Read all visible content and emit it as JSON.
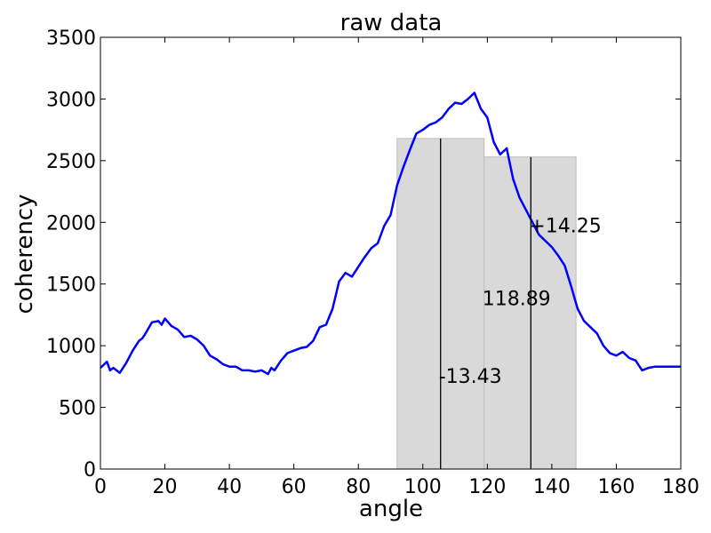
{
  "chart_data": {
    "type": "line",
    "title": "raw data",
    "xlabel": "angle",
    "ylabel": "coherency",
    "xlim": [
      0,
      180
    ],
    "ylim": [
      0,
      3500
    ],
    "xticks": [
      0,
      20,
      40,
      60,
      80,
      100,
      120,
      140,
      160,
      180
    ],
    "yticks": [
      0,
      500,
      1000,
      1500,
      2000,
      2500,
      3000,
      3500
    ],
    "grid": false,
    "line_color": "#0000ff",
    "series": [
      {
        "x": [
          0,
          2,
          3,
          4,
          6,
          8,
          10,
          12,
          13,
          14,
          16,
          18,
          19,
          20,
          22,
          24,
          26,
          28,
          30,
          32,
          34,
          36,
          38,
          40,
          42,
          44,
          46,
          48,
          50,
          52,
          53,
          54,
          56,
          58,
          60,
          62,
          64,
          66,
          68,
          70,
          72,
          74,
          76,
          78,
          80,
          82,
          84,
          86,
          88,
          90,
          92,
          94,
          96,
          98,
          100,
          102,
          104,
          106,
          108,
          110,
          112,
          114,
          116,
          118,
          120,
          122,
          124,
          126,
          128,
          130,
          132,
          134,
          136,
          138,
          140,
          142,
          144,
          146,
          148,
          150,
          152,
          154,
          156,
          158,
          160,
          162,
          164,
          166,
          168,
          170,
          172,
          174,
          176,
          178,
          180
        ],
        "y": [
          820,
          870,
          800,
          820,
          780,
          860,
          960,
          1040,
          1060,
          1100,
          1190,
          1200,
          1170,
          1220,
          1160,
          1130,
          1070,
          1080,
          1050,
          1000,
          920,
          890,
          850,
          830,
          830,
          800,
          800,
          790,
          800,
          770,
          820,
          800,
          880,
          940,
          960,
          980,
          990,
          1040,
          1150,
          1170,
          1300,
          1520,
          1590,
          1560,
          1640,
          1720,
          1790,
          1830,
          1970,
          2060,
          2300,
          2450,
          2590,
          2720,
          2750,
          2790,
          2810,
          2850,
          2920,
          2970,
          2960,
          3000,
          3050,
          2920,
          2850,
          2650,
          2550,
          2600,
          2350,
          2200,
          2100,
          2000,
          1900,
          1850,
          1800,
          1730,
          1650,
          1480,
          1300,
          1200,
          1150,
          1100,
          1000,
          940,
          920,
          950,
          900,
          880,
          800,
          820,
          830,
          830,
          830,
          830,
          830
        ]
      }
    ],
    "bands": [
      {
        "x_start": 92,
        "x_end": 119,
        "top": 2680,
        "marker_x": 105.5,
        "label": "-13.43",
        "label_y": 700
      },
      {
        "x_start": 119,
        "x_end": 147.5,
        "top": 2530,
        "marker_x": 133.5,
        "label": "+14.25",
        "label_y": 1920
      }
    ],
    "band_color": "#d9d9d9",
    "center_label": {
      "text": "118.89",
      "x": 119,
      "y": 1330
    }
  }
}
